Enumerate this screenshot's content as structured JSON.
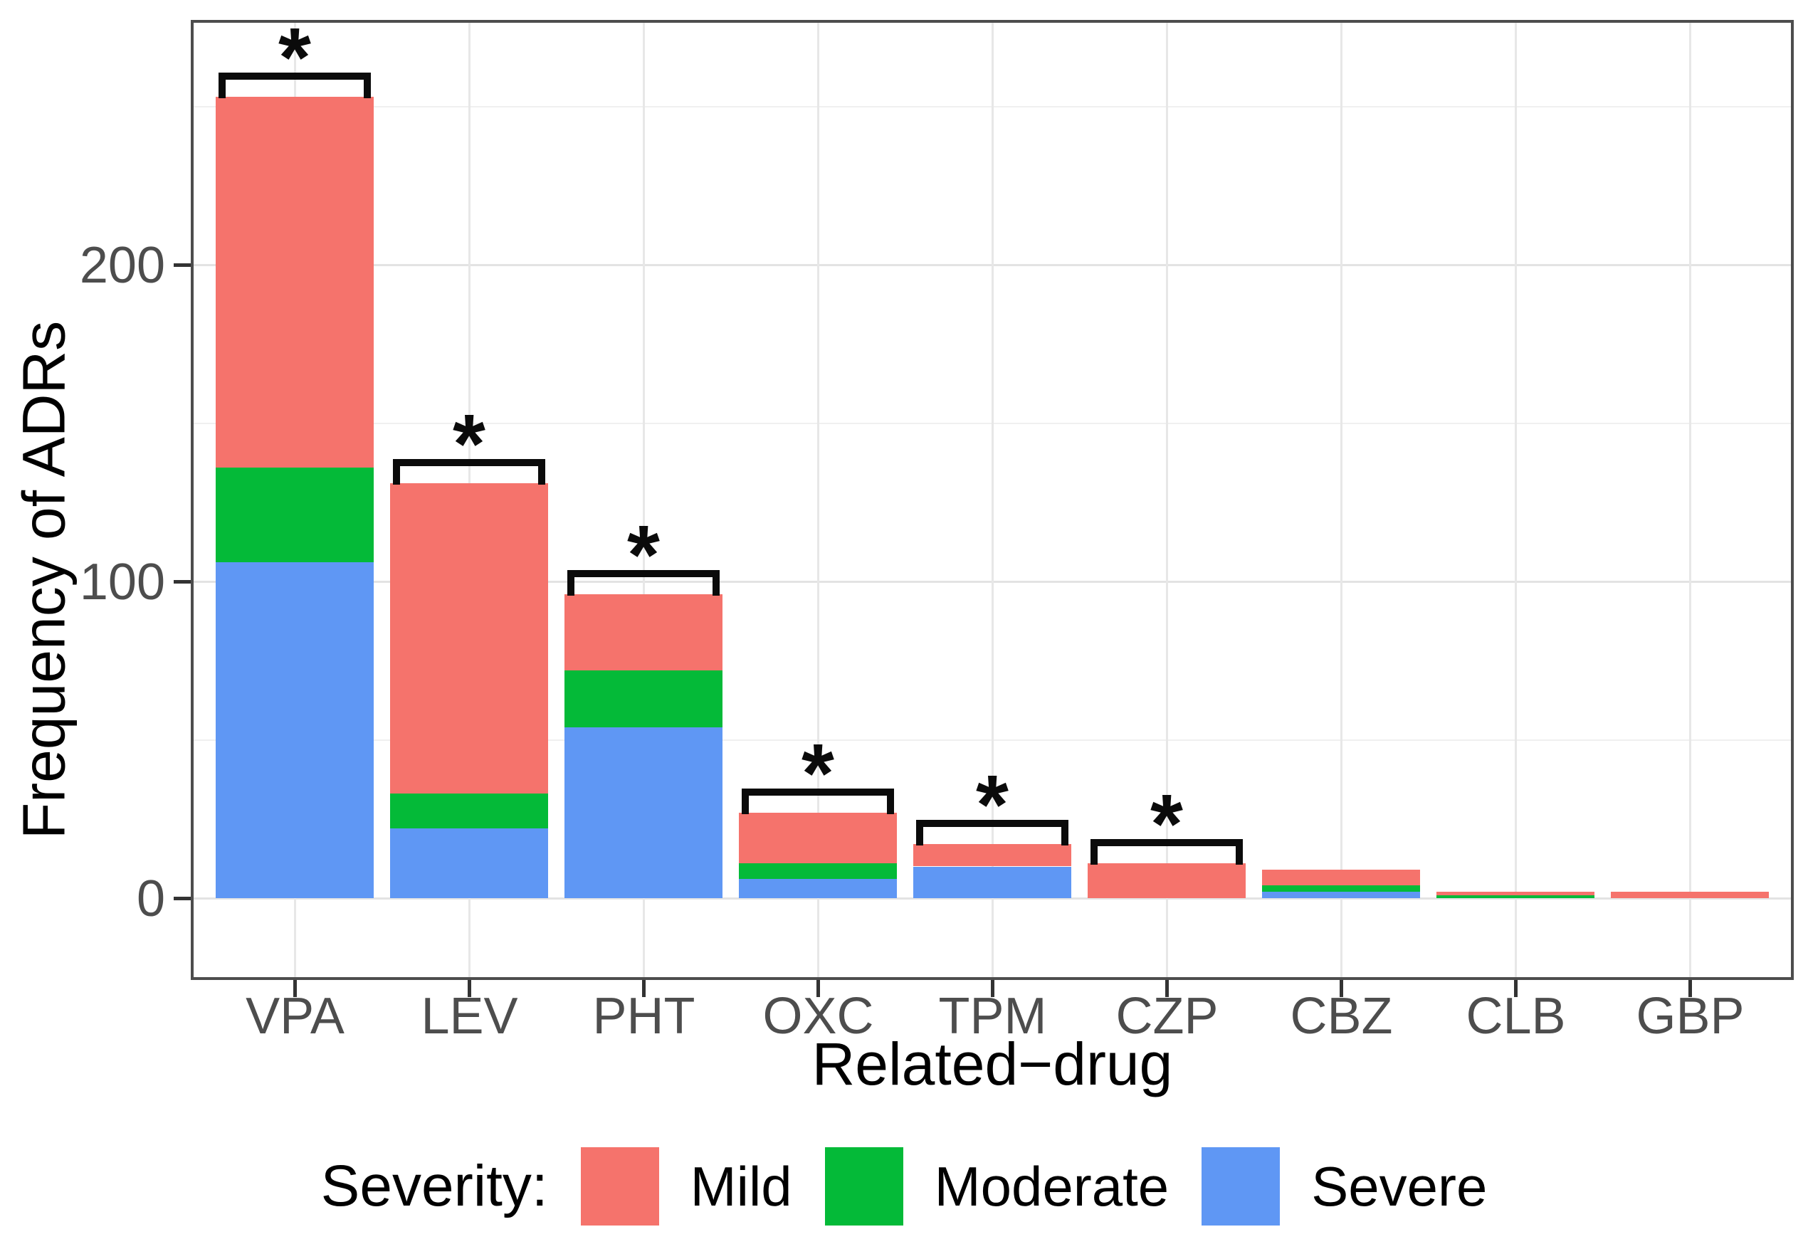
{
  "chart_data": {
    "type": "bar",
    "stacked": true,
    "title": "",
    "xlabel": "Related−drug",
    "ylabel": "Frequency of ADRs",
    "categories": [
      "VPA",
      "LEV",
      "PHT",
      "OXC",
      "TPM",
      "CZP",
      "CBZ",
      "CLB",
      "GBP"
    ],
    "series": [
      {
        "name": "Severe",
        "color": "#5f97f4",
        "values": [
          106,
          22,
          54,
          6,
          10,
          0,
          2,
          0,
          0
        ]
      },
      {
        "name": "Moderate",
        "color": "#04ba38",
        "values": [
          30,
          11,
          18,
          5,
          0,
          0,
          2,
          1,
          0
        ]
      },
      {
        "name": "Mild",
        "color": "#f5736c",
        "values": [
          117,
          98,
          24,
          16,
          7,
          11,
          5,
          1,
          2
        ]
      }
    ],
    "totals": [
      253,
      131,
      96,
      27,
      17,
      11,
      9,
      2,
      2
    ],
    "stack_order_bottom_to_top": [
      "Severe",
      "Moderate",
      "Mild"
    ],
    "significance_marker": "*",
    "significant": [
      true,
      true,
      true,
      true,
      true,
      true,
      false,
      false,
      false
    ],
    "yticks": [
      0,
      100,
      200
    ],
    "ytick_labels": [
      "0",
      "100",
      "200"
    ],
    "minor_yticks": [
      50,
      150,
      250
    ],
    "ylim": [
      0,
      277
    ],
    "grid": true,
    "legend_position": "bottom",
    "legend_title": "Severity:",
    "legend_items": [
      {
        "label": "Mild",
        "color": "#f5736c"
      },
      {
        "label": "Moderate",
        "color": "#04ba38"
      },
      {
        "label": "Severe",
        "color": "#5f97f4"
      }
    ]
  },
  "colors": {
    "mild": "#f5736c",
    "moderate": "#04ba38",
    "severe": "#5f97f4",
    "panel_border": "#4d4d4d",
    "gridline_major": "#e3e3e3",
    "gridline_minor": "#f0f0f0",
    "tick_label": "#4d4d4d",
    "annotation": "#0b0b0b"
  }
}
